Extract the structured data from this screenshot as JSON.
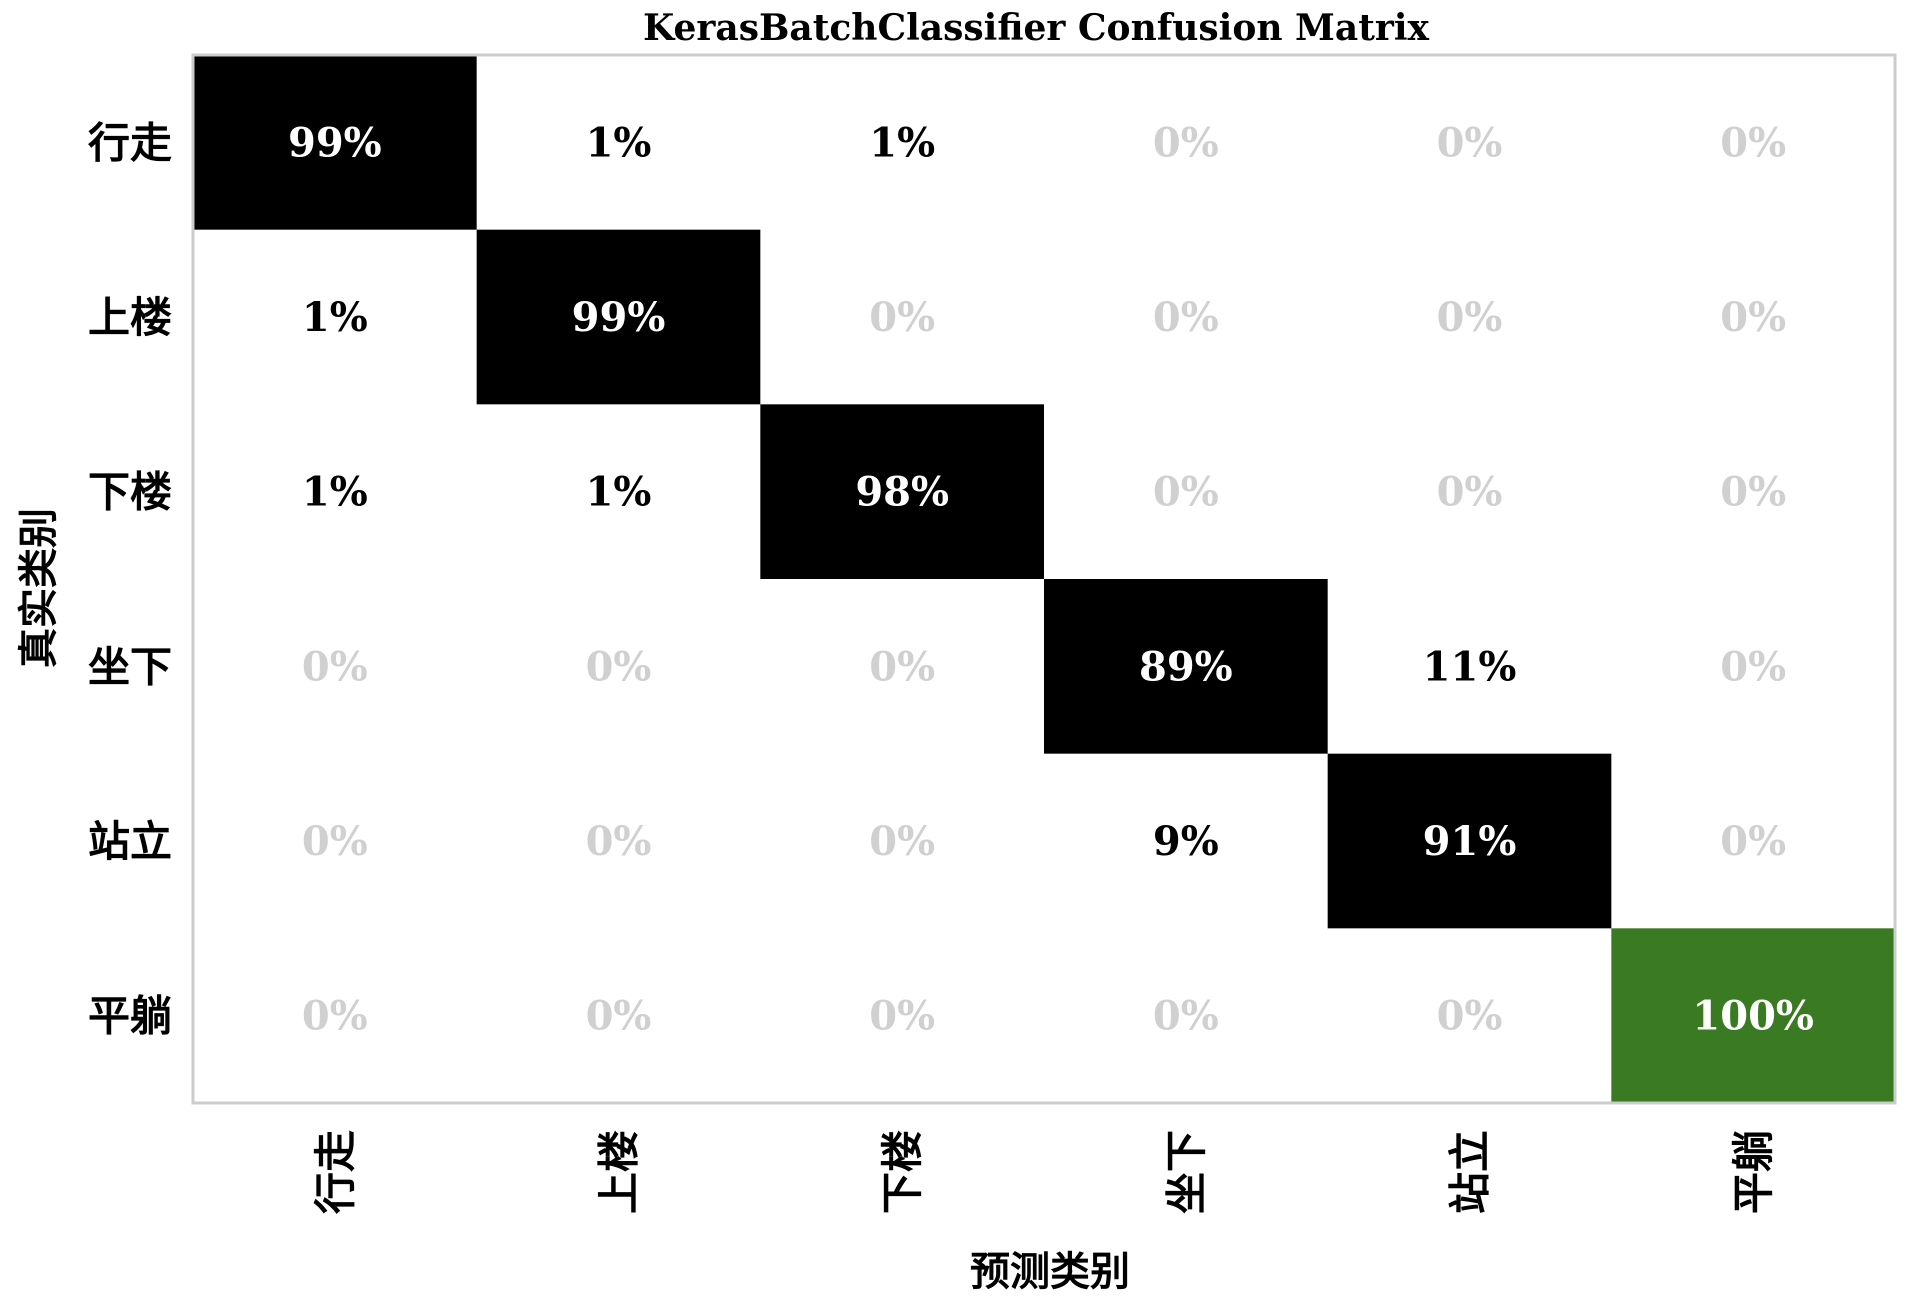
{
  "chart_data": {
    "type": "heatmap",
    "title": "KerasBatchClassifier Confusion Matrix",
    "xlabel": "预测类别",
    "ylabel": "真实类别",
    "x_categories": [
      "行走",
      "上楼",
      "下楼",
      "坐下",
      "站立",
      "平躺"
    ],
    "y_categories": [
      "行走",
      "上楼",
      "下楼",
      "坐下",
      "站立",
      "平躺"
    ],
    "values": [
      [
        99,
        1,
        1,
        0,
        0,
        0
      ],
      [
        1,
        99,
        0,
        0,
        0,
        0
      ],
      [
        1,
        1,
        98,
        0,
        0,
        0
      ],
      [
        0,
        0,
        0,
        89,
        11,
        0
      ],
      [
        0,
        0,
        0,
        9,
        91,
        0
      ],
      [
        0,
        0,
        0,
        0,
        0,
        100
      ]
    ],
    "value_format": "percent",
    "cell_labels": [
      [
        "99%",
        "1%",
        "1%",
        "0%",
        "0%",
        "0%"
      ],
      [
        "1%",
        "99%",
        "0%",
        "0%",
        "0%",
        "0%"
      ],
      [
        "1%",
        "1%",
        "98%",
        "0%",
        "0%",
        "0%"
      ],
      [
        "0%",
        "0%",
        "0%",
        "89%",
        "11%",
        "0%"
      ],
      [
        "0%",
        "0%",
        "0%",
        "9%",
        "91%",
        "0%"
      ],
      [
        "0%",
        "0%",
        "0%",
        "0%",
        "0%",
        "100%"
      ]
    ],
    "colors": {
      "diagonal": "#000000",
      "perfect": "#3a7a22",
      "background": "#ffffff",
      "frame": "#cccccc",
      "zero_text": "#d0d0d0",
      "nonzero_text": "#000000",
      "highlight_text": "#ffffff"
    },
    "grid": false,
    "legend": "none"
  }
}
